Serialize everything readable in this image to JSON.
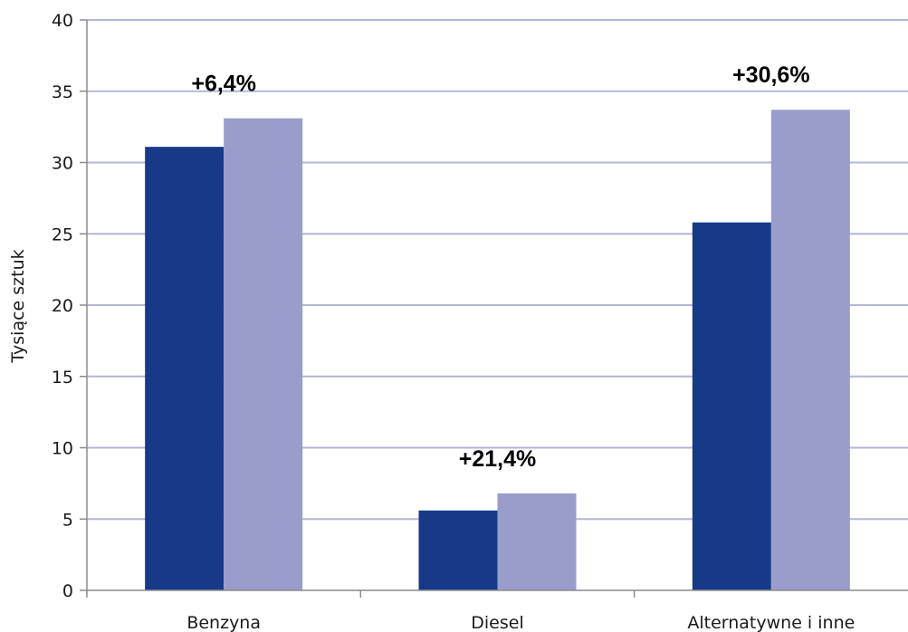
{
  "chart_data": {
    "type": "bar",
    "title": "",
    "xlabel": "",
    "ylabel": "Tysiące sztuk",
    "ylim": [
      0,
      40
    ],
    "ytick_step": 5,
    "grid": true,
    "legend": "none",
    "categories": [
      "Benzyna",
      "Diesel",
      "Alternatywne i inne"
    ],
    "series": [
      {
        "values": [
          31.1,
          5.6,
          25.8
        ],
        "color": "#163a87"
      },
      {
        "values": [
          33.1,
          6.8,
          33.7
        ],
        "color": "#9a9dcb"
      }
    ],
    "annotations": [
      "+6,4%",
      "+21,4%",
      "+30,6%"
    ],
    "colors": {
      "grid": "#b3b6d6",
      "axis": "#8c8c8c"
    }
  }
}
